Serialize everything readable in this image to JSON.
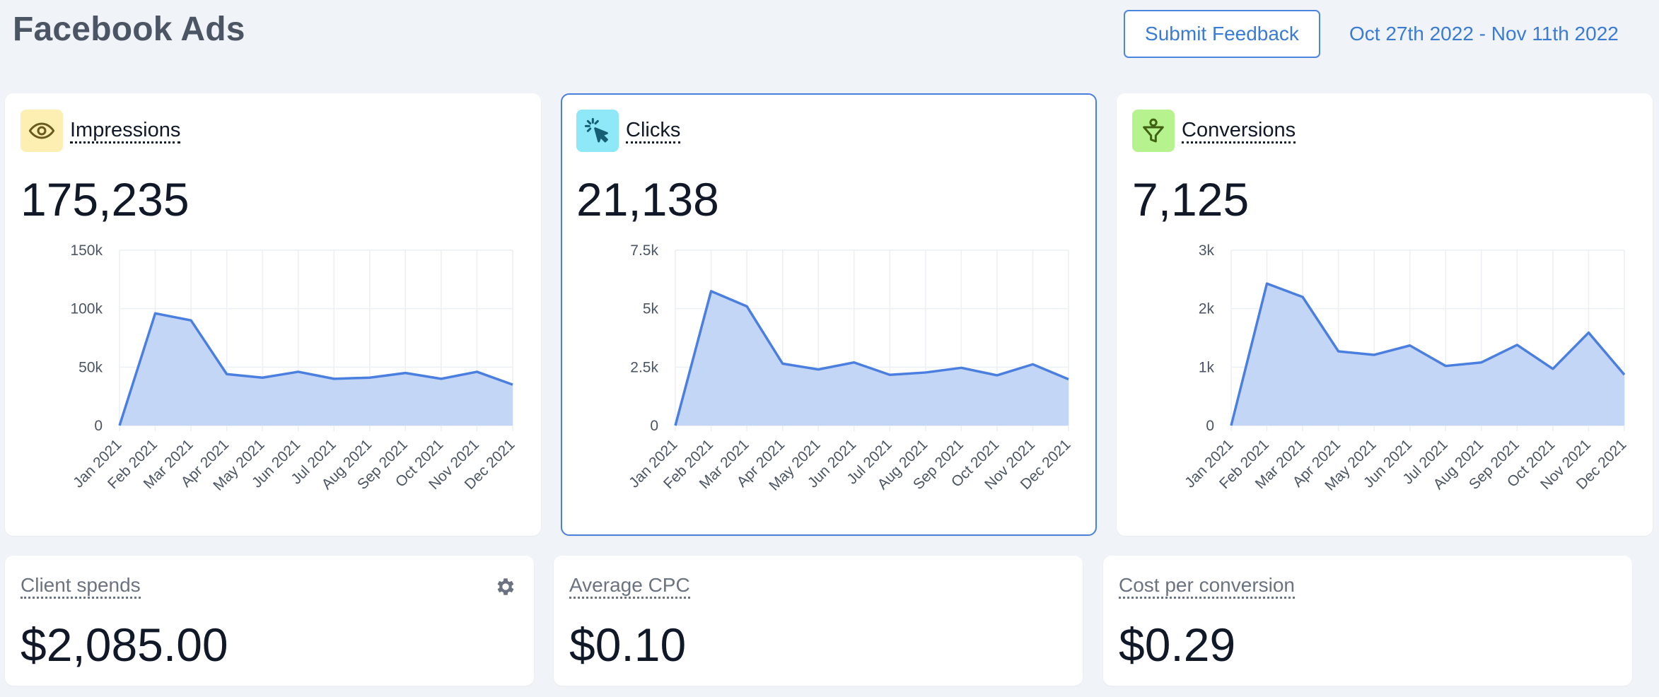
{
  "header": {
    "title": "Facebook Ads",
    "feedback_label": "Submit Feedback",
    "date_range": "Oct 27th 2022 - Nov 11th 2022"
  },
  "cards": [
    {
      "label": "Impressions",
      "value": "175,235",
      "icon": "eye-icon",
      "icon_bg": "#fdeeb1",
      "icon_color": "#6b5a1e"
    },
    {
      "label": "Clicks",
      "value": "21,138",
      "icon": "cursor-click-icon",
      "icon_bg": "#8ee8f8",
      "icon_color": "#155e75"
    },
    {
      "label": "Conversions",
      "value": "7,125",
      "icon": "funnel-icon",
      "icon_bg": "#b6f28e",
      "icon_color": "#3f6212"
    }
  ],
  "stats": [
    {
      "label": "Client spends",
      "value": "$2,085.00"
    },
    {
      "label": "Average CPC",
      "value": "$0.10"
    },
    {
      "label": "Cost per conversion",
      "value": "$0.29"
    }
  ],
  "colors": {
    "line": "#4a7fe0",
    "area": "#c4d6f6",
    "grid": "#eceff3"
  },
  "chart_data": [
    {
      "type": "area",
      "categories": [
        "Jan 2021",
        "Feb 2021",
        "Mar 2021",
        "Apr 2021",
        "May 2021",
        "Jun 2021",
        "Jul 2021",
        "Aug 2021",
        "Sep 2021",
        "Oct 2021",
        "Nov 2021",
        "Dec 2021"
      ],
      "values": [
        0,
        96000,
        90000,
        44000,
        41000,
        46000,
        40000,
        41000,
        45000,
        40000,
        46000,
        35000
      ],
      "ylim": [
        0,
        150000
      ],
      "yticks": [
        0,
        50000,
        100000,
        150000
      ],
      "ytick_labels": [
        "0",
        "50k",
        "100k",
        "150k"
      ],
      "grid": true
    },
    {
      "type": "area",
      "categories": [
        "Jan 2021",
        "Feb 2021",
        "Mar 2021",
        "Apr 2021",
        "May 2021",
        "Jun 2021",
        "Jul 2021",
        "Aug 2021",
        "Sep 2021",
        "Oct 2021",
        "Nov 2021",
        "Dec 2021"
      ],
      "values": [
        0,
        5750,
        5100,
        2650,
        2400,
        2700,
        2170,
        2270,
        2470,
        2150,
        2620,
        1980
      ],
      "ylim": [
        0,
        7500
      ],
      "yticks": [
        0,
        2500,
        5000,
        7500
      ],
      "ytick_labels": [
        "0",
        "2.5k",
        "5k",
        "7.5k"
      ],
      "grid": true
    },
    {
      "type": "area",
      "categories": [
        "Jan 2021",
        "Feb 2021",
        "Mar 2021",
        "Apr 2021",
        "May 2021",
        "Jun 2021",
        "Jul 2021",
        "Aug 2021",
        "Sep 2021",
        "Oct 2021",
        "Nov 2021",
        "Dec 2021"
      ],
      "values": [
        0,
        2430,
        2200,
        1270,
        1210,
        1370,
        1020,
        1080,
        1380,
        970,
        1590,
        870
      ],
      "ylim": [
        0,
        3000
      ],
      "yticks": [
        0,
        1000,
        2000,
        3000
      ],
      "ytick_labels": [
        "0",
        "1k",
        "2k",
        "3k"
      ],
      "grid": true
    }
  ]
}
